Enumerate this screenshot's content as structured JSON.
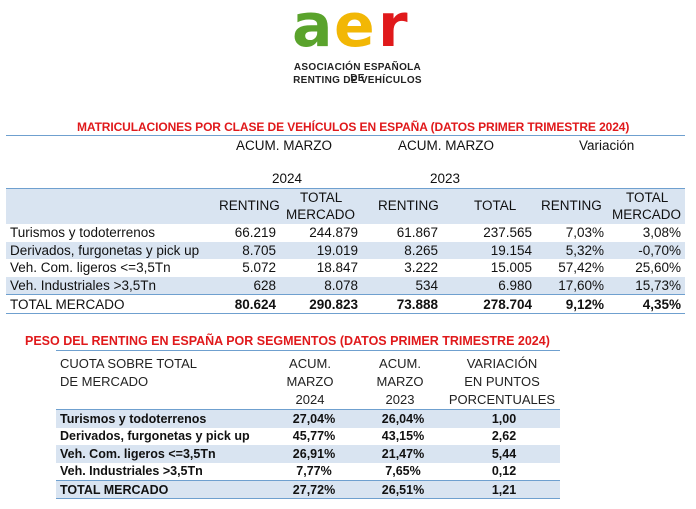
{
  "logo": {
    "word_a": "a",
    "word_e": "e",
    "word_r": "r",
    "line1": "ASOCIACIÓN ESPAÑOLA DE",
    "line2": "RENTING DE VEHÍCULOS",
    "colors": {
      "a": "#5aa32c",
      "e": "#f2b705",
      "r": "#e0191b"
    }
  },
  "table1": {
    "title": "MATRICULACIONES POR CLASE DE VEHÍCULOS EN ESPAÑA (DATOS PRIMER TRIMESTRE 2024)",
    "group_headers": {
      "acum_2024": "ACUM. MARZO",
      "acum_2023": "ACUM. MARZO",
      "variacion": "Variación"
    },
    "years": {
      "y2024": "2024",
      "y2023": "2023"
    },
    "col_headers": {
      "renting_2024": "RENTING",
      "total_2024_l1": "TOTAL",
      "total_2024_l2": "MERCADO",
      "renting_2023": "RENTING",
      "total_2023": "TOTAL",
      "renting_var": "RENTING",
      "total_var_l1": "TOTAL",
      "total_var_l2": "MERCADO"
    },
    "rows": [
      {
        "label": "Turismos y todoterrenos",
        "c1": "66.219",
        "c2": "244.879",
        "c3": "61.867",
        "c4": "237.565",
        "c5": "7,03%",
        "c6": "3,08%"
      },
      {
        "label": "Derivados, furgonetas y pick up",
        "c1": "8.705",
        "c2": "19.019",
        "c3": "8.265",
        "c4": "19.154",
        "c5": "5,32%",
        "c6": "-0,70%"
      },
      {
        "label": "Veh. Com. ligeros <=3,5Tn",
        "c1": "5.072",
        "c2": "18.847",
        "c3": "3.222",
        "c4": "15.005",
        "c5": "57,42%",
        "c6": "25,60%"
      },
      {
        "label": "Veh. Industriales >3,5Tn",
        "c1": "628",
        "c2": "8.078",
        "c3": "534",
        "c4": "6.980",
        "c5": "17,60%",
        "c6": "15,73%"
      },
      {
        "label": "TOTAL MERCADO",
        "c1": "80.624",
        "c2": "290.823",
        "c3": "73.888",
        "c4": "278.704",
        "c5": "9,12%",
        "c6": "4,35%"
      }
    ]
  },
  "table2": {
    "title": "PESO DEL RENTING EN ESPAÑA POR SEGMENTOS (DATOS PRIMER TRIMESTRE 2024)",
    "headers": {
      "cuota_l1": "CUOTA SOBRE TOTAL",
      "cuota_l2": "DE MERCADO",
      "a24_l1": "ACUM.",
      "a24_l2": "MARZO",
      "a24_l3": "2024",
      "a23_l1": "ACUM.",
      "a23_l2": "MARZO",
      "a23_l3": "2023",
      "var_l1": "VARIACIÓN",
      "var_l2": "EN PUNTOS",
      "var_l3": "PORCENTUALES"
    },
    "rows": [
      {
        "label": "Turismos y todoterrenos",
        "a24": "27,04%",
        "a23": "26,04%",
        "var": "1,00"
      },
      {
        "label": "Derivados, furgonetas y pick up",
        "a24": "45,77%",
        "a23": "43,15%",
        "var": "2,62"
      },
      {
        "label": "Veh. Com. ligeros <=3,5Tn",
        "a24": "26,91%",
        "a23": "21,47%",
        "var": "5,44"
      },
      {
        "label": "Veh. Industriales >3,5Tn",
        "a24": "7,77%",
        "a23": "7,65%",
        "var": "0,12"
      },
      {
        "label": "TOTAL MERCADO",
        "a24": "27,72%",
        "a23": "26,51%",
        "var": "1,21"
      }
    ]
  }
}
